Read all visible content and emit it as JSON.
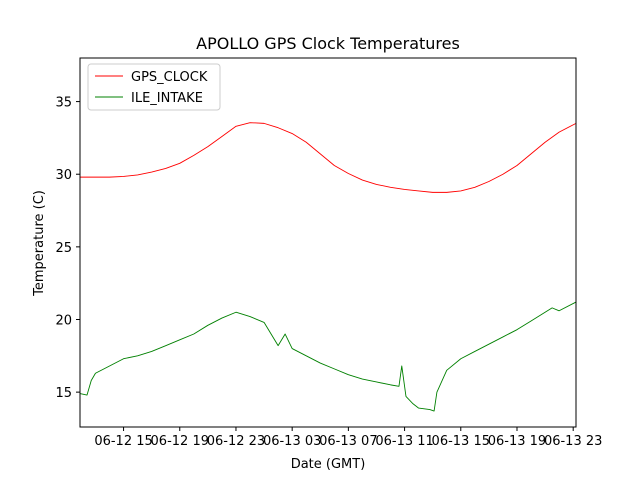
{
  "chart_data": {
    "type": "line",
    "title": "APOLLO GPS Clock Temperatures",
    "xlabel": "Date (GMT)",
    "ylabel": "Temperature (C)",
    "x_tick_labels": [
      "06-12 15",
      "06-12 19",
      "06-12 23",
      "06-13 03",
      "06-13 07",
      "06-13 11",
      "06-13 15",
      "06-13 19",
      "06-13 23"
    ],
    "x_tick_hours": [
      15,
      19,
      23,
      27,
      31,
      35,
      39,
      43,
      47
    ],
    "xlim_hours": [
      11.9,
      47.2
    ],
    "ylim": [
      12.6,
      38.0
    ],
    "y_ticks": [
      15,
      20,
      25,
      30,
      35
    ],
    "y_tick_labels": [
      "15",
      "20",
      "25",
      "30",
      "35"
    ],
    "grid": false,
    "legend_position": "top-left",
    "series": [
      {
        "name": "GPS_CLOCK",
        "color": "#ff0000",
        "x_hours": [
          11.9,
          13,
          14,
          15,
          16,
          17,
          18,
          19,
          20,
          21,
          22,
          23,
          24,
          25,
          26,
          27,
          28,
          29,
          30,
          31,
          32,
          33,
          34,
          35,
          35.5,
          36,
          37,
          38,
          39,
          40,
          41,
          42,
          43,
          44,
          45,
          46,
          47.2
        ],
        "values": [
          29.8,
          29.8,
          29.8,
          29.85,
          29.95,
          30.15,
          30.4,
          30.75,
          31.3,
          31.9,
          32.6,
          33.3,
          33.55,
          33.5,
          33.2,
          32.8,
          32.2,
          31.4,
          30.6,
          30.05,
          29.6,
          29.3,
          29.1,
          28.95,
          28.9,
          28.85,
          28.75,
          28.75,
          28.85,
          29.1,
          29.5,
          30.0,
          30.6,
          31.4,
          32.2,
          32.9,
          33.5
        ]
      },
      {
        "name": "ILE_INTAKE",
        "color": "#008000",
        "x_hours": [
          11.9,
          12.4,
          12.7,
          13,
          14,
          15,
          16,
          17,
          18,
          19,
          20,
          21,
          22,
          23,
          24,
          25,
          26,
          26.5,
          27,
          28,
          29,
          30,
          31,
          32,
          33,
          34,
          34.6,
          34.8,
          35.1,
          35.6,
          36,
          36.8,
          37.1,
          37.3,
          38,
          39,
          40,
          41,
          42,
          43,
          44,
          45,
          45.5,
          46,
          47.2
        ],
        "values": [
          14.9,
          14.8,
          15.8,
          16.3,
          16.8,
          17.3,
          17.5,
          17.8,
          18.2,
          18.6,
          19.0,
          19.6,
          20.1,
          20.5,
          20.2,
          19.8,
          18.2,
          19.0,
          18.0,
          17.5,
          17.0,
          16.6,
          16.2,
          15.9,
          15.7,
          15.5,
          15.4,
          16.8,
          14.7,
          14.2,
          13.9,
          13.8,
          13.7,
          15.0,
          16.5,
          17.3,
          17.8,
          18.3,
          18.8,
          19.3,
          19.9,
          20.5,
          20.8,
          20.6,
          21.2
        ]
      }
    ]
  }
}
